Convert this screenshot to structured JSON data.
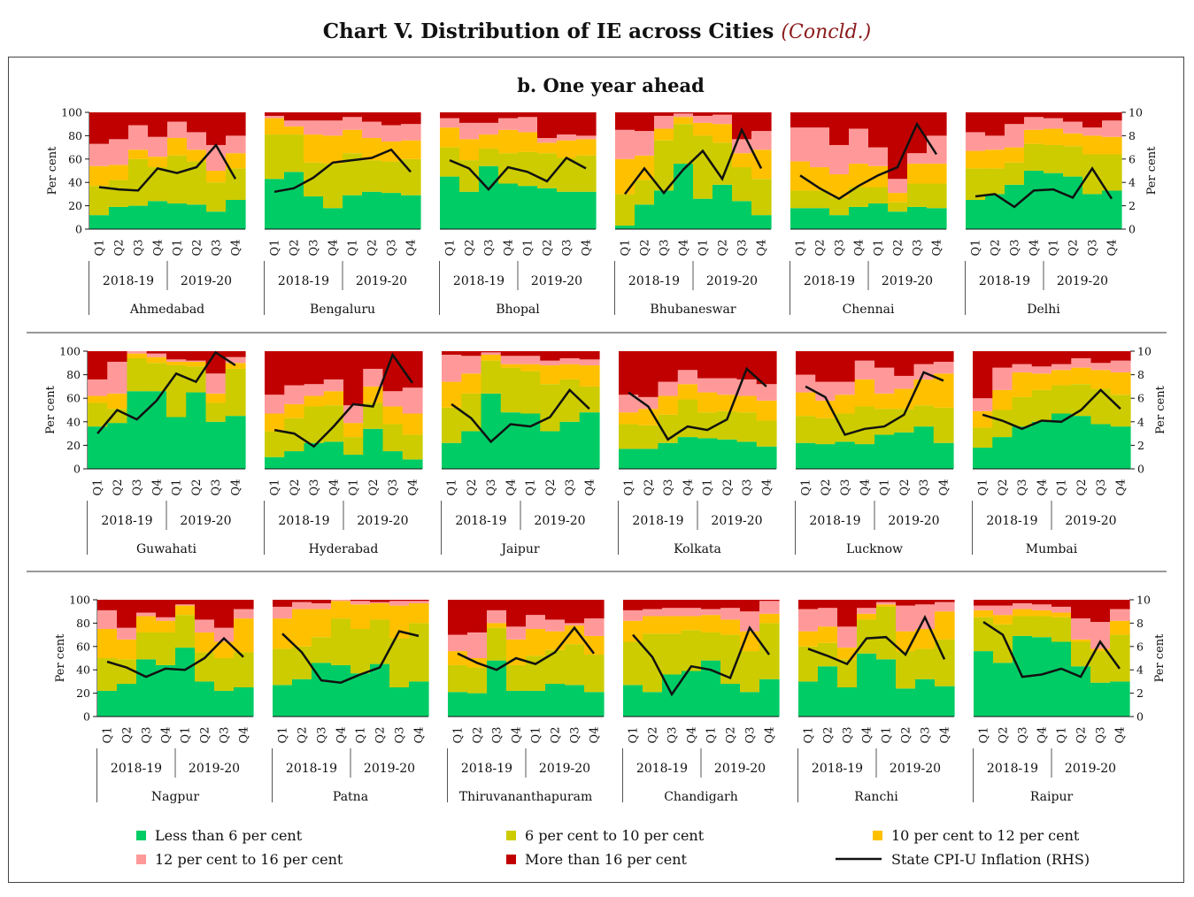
{
  "title": {
    "main": "Chart V. Distribution of IE across Cities",
    "sub": "(Concld.)"
  },
  "panel_title": "b. One year ahead",
  "colors": {
    "lt6": "#00cc66",
    "6to10": "#cccc00",
    "10to12": "#ffc000",
    "12to16": "#ff9999",
    "gt16": "#c00000",
    "cpi": "#111111"
  },
  "legend": [
    {
      "key": "lt6",
      "label": "Less than 6 per cent",
      "kind": "box"
    },
    {
      "key": "6to10",
      "label": "6 per cent to 10 per cent",
      "kind": "box"
    },
    {
      "key": "10to12",
      "label": "10 per cent to 12 per cent",
      "kind": "box"
    },
    {
      "key": "12to16",
      "label": "12 per cent to 16 per cent",
      "kind": "box"
    },
    {
      "key": "gt16",
      "label": "More than 16 per cent",
      "kind": "box"
    },
    {
      "key": "cpi",
      "label": "State CPI-U Inflation (RHS)",
      "kind": "line"
    }
  ],
  "chart_data": {
    "type": "stacked-area-with-line",
    "x_quarters": [
      "Q1",
      "Q2",
      "Q3",
      "Q4",
      "Q1",
      "Q2",
      "Q3",
      "Q4"
    ],
    "x_years": [
      "2018-19",
      "2019-20"
    ],
    "left_axis": {
      "label": "Per cent",
      "ticks": [
        "0",
        "20",
        "40",
        "60",
        "80",
        "100"
      ],
      "range": [
        0,
        100
      ]
    },
    "right_axis": {
      "label": "Per cent",
      "ticks": [
        "0",
        "2",
        "4",
        "6",
        "8",
        "10"
      ],
      "range": [
        0,
        10
      ]
    },
    "series_order": [
      "lt6",
      "6to10",
      "10to12",
      "12to16",
      "gt16"
    ],
    "cities": [
      {
        "name": "Ahmedabad",
        "lt6": [
          12,
          19,
          20,
          24,
          22,
          21,
          15,
          25
        ],
        "6to10": [
          25,
          23,
          40,
          29,
          41,
          37,
          25,
          27
        ],
        "10to12": [
          17,
          13,
          8,
          9,
          15,
          10,
          10,
          13
        ],
        "12to16": [
          19,
          22,
          21,
          17,
          14,
          15,
          22,
          15
        ],
        "gt16": [
          27,
          23,
          11,
          21,
          8,
          17,
          28,
          20
        ],
        "cpi": [
          3.6,
          3.4,
          3.3,
          5.2,
          4.8,
          5.3,
          7.2,
          4.3
        ]
      },
      {
        "name": "Bengaluru",
        "lt6": [
          43,
          49,
          28,
          18,
          29,
          32,
          31,
          29
        ],
        "6to10": [
          38,
          32,
          29,
          38,
          36,
          27,
          27,
          31
        ],
        "10to12": [
          14,
          7,
          24,
          24,
          20,
          19,
          17,
          16
        ],
        "12to16": [
          2,
          5,
          12,
          13,
          11,
          14,
          14,
          14
        ],
        "gt16": [
          3,
          7,
          7,
          7,
          4,
          8,
          11,
          10
        ],
        "cpi": [
          3.2,
          3.5,
          4.4,
          5.7,
          5.9,
          6.1,
          6.8,
          4.9
        ]
      },
      {
        "name": "Bhopal",
        "lt6": [
          45,
          32,
          54,
          39,
          37,
          35,
          32,
          32
        ],
        "6to10": [
          25,
          27,
          15,
          26,
          29,
          30,
          29,
          31
        ],
        "10to12": [
          17,
          18,
          12,
          20,
          17,
          9,
          15,
          14
        ],
        "12to16": [
          8,
          14,
          10,
          10,
          13,
          4,
          5,
          3
        ],
        "gt16": [
          5,
          9,
          9,
          5,
          4,
          22,
          19,
          20
        ],
        "cpi": [
          5.9,
          5.2,
          3.4,
          5.3,
          4.9,
          4.1,
          6.1,
          5.2
        ]
      },
      {
        "name": "Bhubaneswar",
        "lt6": [
          3,
          21,
          33,
          56,
          26,
          38,
          24,
          12
        ],
        "6to10": [
          27,
          21,
          43,
          34,
          54,
          36,
          29,
          31
        ],
        "10to12": [
          30,
          21,
          10,
          6,
          11,
          16,
          12,
          25
        ],
        "12to16": [
          25,
          21,
          11,
          3,
          6,
          8,
          12,
          16
        ],
        "gt16": [
          15,
          16,
          3,
          1,
          3,
          2,
          23,
          16
        ],
        "cpi": [
          3.0,
          5.2,
          3.1,
          5.1,
          6.7,
          4.3,
          8.5,
          5.2
        ]
      },
      {
        "name": "Chennai",
        "lt6": [
          18,
          18,
          12,
          19,
          22,
          15,
          19,
          18
        ],
        "6to10": [
          15,
          15,
          15,
          17,
          14,
          8,
          20,
          21
        ],
        "10to12": [
          25,
          20,
          20,
          20,
          18,
          8,
          17,
          17
        ],
        "12to16": [
          29,
          34,
          25,
          30,
          16,
          12,
          9,
          24
        ],
        "gt16": [
          13,
          13,
          28,
          14,
          30,
          57,
          35,
          20
        ],
        "cpi": [
          4.6,
          3.5,
          2.6,
          3.7,
          4.6,
          5.3,
          9.0,
          6.4
        ]
      },
      {
        "name": "Delhi",
        "lt6": [
          25,
          30,
          38,
          50,
          48,
          45,
          30,
          33
        ],
        "6to10": [
          27,
          22,
          19,
          23,
          24,
          26,
          34,
          31
        ],
        "10to12": [
          15,
          16,
          13,
          12,
          14,
          11,
          16,
          15
        ],
        "12to16": [
          16,
          12,
          20,
          11,
          9,
          10,
          7,
          14
        ],
        "gt16": [
          17,
          20,
          10,
          4,
          5,
          8,
          13,
          7
        ],
        "cpi": [
          2.8,
          3.0,
          1.9,
          3.3,
          3.4,
          2.7,
          5.2,
          2.6
        ]
      },
      {
        "name": "Guwahati",
        "lt6": [
          36,
          39,
          66,
          66,
          44,
          65,
          40,
          45
        ],
        "6to10": [
          20,
          12,
          28,
          24,
          44,
          22,
          16,
          40
        ],
        "10to12": [
          6,
          13,
          4,
          5,
          3,
          4,
          8,
          5
        ],
        "12to16": [
          14,
          27,
          2,
          3,
          2,
          1,
          17,
          5
        ],
        "gt16": [
          24,
          9,
          0,
          2,
          7,
          8,
          19,
          5
        ],
        "cpi": [
          3.0,
          5.0,
          4.2,
          5.8,
          8.1,
          7.4,
          9.9,
          8.8
        ]
      },
      {
        "name": "Hyderabad",
        "lt6": [
          10,
          15,
          22,
          23,
          12,
          34,
          15,
          8
        ],
        "6to10": [
          22,
          28,
          31,
          31,
          15,
          22,
          23,
          21
        ],
        "10to12": [
          15,
          12,
          9,
          12,
          12,
          14,
          15,
          18
        ],
        "12to16": [
          16,
          16,
          10,
          10,
          15,
          15,
          13,
          22
        ],
        "gt16": [
          37,
          29,
          28,
          24,
          46,
          15,
          34,
          31
        ],
        "cpi": [
          3.3,
          3.0,
          1.9,
          3.6,
          5.5,
          5.3,
          9.7,
          7.3
        ]
      },
      {
        "name": "Jaipur",
        "lt6": [
          22,
          32,
          64,
          48,
          47,
          32,
          40,
          48
        ],
        "6to10": [
          30,
          32,
          28,
          38,
          36,
          40,
          36,
          22
        ],
        "10to12": [
          22,
          17,
          5,
          3,
          6,
          16,
          13,
          18
        ],
        "12to16": [
          23,
          15,
          2,
          7,
          7,
          4,
          5,
          5
        ],
        "gt16": [
          3,
          4,
          1,
          4,
          4,
          8,
          6,
          7
        ],
        "cpi": [
          5.5,
          4.3,
          2.3,
          3.8,
          3.6,
          4.4,
          6.7,
          5.1
        ]
      },
      {
        "name": "Kolkata",
        "lt6": [
          17,
          17,
          22,
          27,
          26,
          25,
          23,
          19
        ],
        "6to10": [
          21,
          20,
          24,
          32,
          22,
          24,
          25,
          22
        ],
        "10to12": [
          10,
          14,
          16,
          13,
          17,
          14,
          14,
          17
        ],
        "12to16": [
          15,
          10,
          12,
          12,
          12,
          14,
          14,
          14
        ],
        "gt16": [
          37,
          39,
          26,
          16,
          23,
          23,
          24,
          28
        ],
        "cpi": [
          6.5,
          5.3,
          2.5,
          3.6,
          3.3,
          4.2,
          8.5,
          7.0
        ]
      },
      {
        "name": "Lucknow",
        "lt6": [
          22,
          21,
          23,
          21,
          29,
          31,
          36,
          22
        ],
        "6to10": [
          23,
          22,
          24,
          32,
          22,
          20,
          18,
          30
        ],
        "10to12": [
          20,
          15,
          16,
          23,
          13,
          17,
          22,
          29
        ],
        "12to16": [
          15,
          16,
          11,
          16,
          22,
          11,
          13,
          10
        ],
        "gt16": [
          20,
          26,
          26,
          8,
          14,
          21,
          11,
          9
        ],
        "cpi": [
          7.0,
          6.1,
          2.9,
          3.4,
          3.6,
          4.6,
          8.2,
          7.5
        ]
      },
      {
        "name": "Mumbai",
        "lt6": [
          18,
          27,
          36,
          40,
          47,
          45,
          38,
          36
        ],
        "6to10": [
          17,
          23,
          25,
          27,
          24,
          27,
          30,
          27
        ],
        "10to12": [
          14,
          17,
          21,
          14,
          13,
          14,
          16,
          19
        ],
        "12to16": [
          11,
          19,
          7,
          6,
          5,
          8,
          6,
          10
        ],
        "gt16": [
          40,
          14,
          11,
          13,
          11,
          6,
          10,
          8
        ],
        "cpi": [
          4.6,
          4.1,
          3.4,
          4.1,
          4.0,
          5.0,
          6.7,
          5.1
        ]
      },
      {
        "name": "Nagpur",
        "lt6": [
          22,
          28,
          49,
          44,
          59,
          30,
          22,
          25
        ],
        "6to10": [
          28,
          21,
          23,
          28,
          28,
          25,
          28,
          30
        ],
        "10to12": [
          25,
          17,
          14,
          10,
          8,
          17,
          14,
          29
        ],
        "12to16": [
          16,
          10,
          3,
          3,
          1,
          11,
          12,
          8
        ],
        "gt16": [
          9,
          24,
          11,
          15,
          4,
          17,
          24,
          8
        ],
        "cpi": [
          4.7,
          4.2,
          3.4,
          4.1,
          4.0,
          5.0,
          6.7,
          5.1
        ]
      },
      {
        "name": "Patna",
        "lt6": [
          27,
          32,
          46,
          44,
          37,
          45,
          25,
          30
        ],
        "6to10": [
          31,
          28,
          22,
          40,
          38,
          38,
          42,
          50
        ],
        "10to12": [
          26,
          32,
          24,
          15,
          21,
          14,
          28,
          17
        ],
        "12to16": [
          10,
          6,
          5,
          1,
          3,
          1,
          4,
          2
        ],
        "gt16": [
          6,
          2,
          3,
          0,
          1,
          2,
          1,
          1
        ],
        "cpi": [
          7.1,
          5.5,
          3.1,
          2.9,
          3.6,
          4.2,
          7.3,
          6.9
        ]
      },
      {
        "name": "Thiruvananthapuram",
        "lt6": [
          21,
          20,
          48,
          22,
          22,
          28,
          27,
          21
        ],
        "6to10": [
          23,
          22,
          28,
          22,
          30,
          29,
          35,
          32
        ],
        "10to12": [
          12,
          8,
          4,
          22,
          23,
          16,
          16,
          16
        ],
        "12to16": [
          14,
          22,
          11,
          11,
          12,
          10,
          2,
          15
        ],
        "gt16": [
          30,
          28,
          9,
          23,
          13,
          17,
          20,
          16
        ],
        "cpi": [
          5.4,
          4.6,
          4.0,
          5.0,
          4.5,
          5.5,
          7.6,
          5.4
        ]
      },
      {
        "name": "Chandigarh",
        "lt6": [
          27,
          21,
          36,
          39,
          48,
          28,
          21,
          32
        ],
        "6to10": [
          37,
          50,
          35,
          35,
          24,
          42,
          35,
          48
        ],
        "10to12": [
          18,
          15,
          15,
          12,
          15,
          13,
          17,
          8
        ],
        "12to16": [
          9,
          6,
          7,
          7,
          5,
          10,
          17,
          11
        ],
        "gt16": [
          9,
          8,
          7,
          7,
          8,
          7,
          10,
          1
        ],
        "cpi": [
          7.0,
          5.1,
          1.9,
          4.3,
          4.0,
          3.3,
          7.6,
          5.3
        ]
      },
      {
        "name": "Ranchi",
        "lt6": [
          30,
          43,
          25,
          54,
          49,
          24,
          32,
          26
        ],
        "6to10": [
          30,
          20,
          24,
          29,
          45,
          32,
          26,
          40
        ],
        "10to12": [
          13,
          14,
          10,
          5,
          2,
          17,
          17,
          24
        ],
        "12to16": [
          19,
          16,
          18,
          5,
          2,
          22,
          21,
          8
        ],
        "gt16": [
          8,
          7,
          23,
          7,
          2,
          5,
          4,
          2
        ],
        "cpi": [
          5.8,
          5.2,
          4.5,
          6.7,
          6.8,
          5.3,
          8.5,
          4.9
        ]
      },
      {
        "name": "Raipur",
        "lt6": [
          56,
          46,
          69,
          68,
          64,
          43,
          29,
          30
        ],
        "6to10": [
          29,
          33,
          17,
          18,
          21,
          21,
          27,
          40
        ],
        "10to12": [
          6,
          8,
          6,
          5,
          4,
          2,
          2,
          12
        ],
        "12to16": [
          4,
          8,
          5,
          5,
          5,
          18,
          23,
          10
        ],
        "gt16": [
          5,
          5,
          3,
          4,
          6,
          16,
          19,
          8
        ],
        "cpi": [
          8.1,
          7.0,
          3.4,
          3.6,
          4.1,
          3.4,
          6.4,
          4.1
        ]
      }
    ]
  }
}
